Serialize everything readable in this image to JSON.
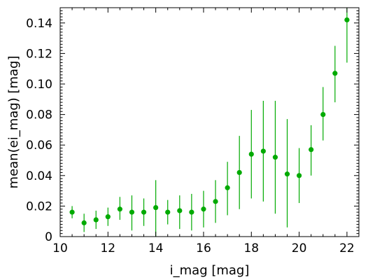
{
  "chart_data": {
    "type": "scatter",
    "xlabel": "i_mag [mag]",
    "ylabel": "mean(ei_mag) [mag]",
    "xlim": [
      10,
      22.5
    ],
    "ylim": [
      0,
      0.15
    ],
    "x_ticks": [
      10,
      12,
      14,
      16,
      18,
      20,
      22
    ],
    "x_tick_labels": [
      "10",
      "12",
      "14",
      "16",
      "18",
      "20",
      "22"
    ],
    "y_ticks": [
      0,
      0.02,
      0.04,
      0.06,
      0.08,
      0.1,
      0.12,
      0.14
    ],
    "y_tick_labels": [
      "0",
      "0.02",
      "0.04",
      "0.06",
      "0.08",
      "0.10",
      "0.12",
      "0.14"
    ],
    "grid": false,
    "color": "#00aa00",
    "points": [
      {
        "x": 10.5,
        "y": 0.016,
        "ylo": 0.012,
        "yhi": 0.02
      },
      {
        "x": 11.0,
        "y": 0.009,
        "ylo": 0.003,
        "yhi": 0.015
      },
      {
        "x": 11.5,
        "y": 0.011,
        "ylo": 0.005,
        "yhi": 0.017
      },
      {
        "x": 12.0,
        "y": 0.013,
        "ylo": 0.007,
        "yhi": 0.019
      },
      {
        "x": 12.5,
        "y": 0.018,
        "ylo": 0.011,
        "yhi": 0.026
      },
      {
        "x": 13.0,
        "y": 0.016,
        "ylo": 0.004,
        "yhi": 0.027
      },
      {
        "x": 13.5,
        "y": 0.016,
        "ylo": 0.007,
        "yhi": 0.025
      },
      {
        "x": 14.0,
        "y": 0.019,
        "ylo": 0.0,
        "yhi": 0.037
      },
      {
        "x": 14.5,
        "y": 0.016,
        "ylo": 0.008,
        "yhi": 0.024
      },
      {
        "x": 15.0,
        "y": 0.017,
        "ylo": 0.005,
        "yhi": 0.027
      },
      {
        "x": 15.5,
        "y": 0.016,
        "ylo": 0.004,
        "yhi": 0.028
      },
      {
        "x": 16.0,
        "y": 0.018,
        "ylo": 0.006,
        "yhi": 0.03
      },
      {
        "x": 16.5,
        "y": 0.023,
        "ylo": 0.009,
        "yhi": 0.037
      },
      {
        "x": 17.0,
        "y": 0.032,
        "ylo": 0.014,
        "yhi": 0.049
      },
      {
        "x": 17.5,
        "y": 0.042,
        "ylo": 0.018,
        "yhi": 0.066
      },
      {
        "x": 18.0,
        "y": 0.054,
        "ylo": 0.025,
        "yhi": 0.083
      },
      {
        "x": 18.5,
        "y": 0.056,
        "ylo": 0.023,
        "yhi": 0.089
      },
      {
        "x": 19.0,
        "y": 0.052,
        "ylo": 0.015,
        "yhi": 0.089
      },
      {
        "x": 19.5,
        "y": 0.041,
        "ylo": 0.006,
        "yhi": 0.077
      },
      {
        "x": 20.0,
        "y": 0.04,
        "ylo": 0.022,
        "yhi": 0.058
      },
      {
        "x": 20.5,
        "y": 0.057,
        "ylo": 0.04,
        "yhi": 0.073
      },
      {
        "x": 21.0,
        "y": 0.08,
        "ylo": 0.063,
        "yhi": 0.098
      },
      {
        "x": 21.5,
        "y": 0.107,
        "ylo": 0.088,
        "yhi": 0.125
      },
      {
        "x": 22.0,
        "y": 0.142,
        "ylo": 0.114,
        "yhi": 0.15
      }
    ]
  }
}
